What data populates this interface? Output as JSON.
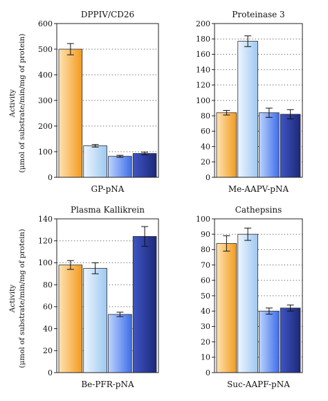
{
  "y_axis_label_line1": "Activity",
  "y_axis_label_line2": "(μmol of substrate/min/mg of protein)",
  "chart_data": [
    {
      "type": "bar",
      "title": "DPPIV/CD26",
      "xlabel": "GP-pNA",
      "ylabel": "Activity (μmol of substrate/min/mg of protein)",
      "ylim": [
        0,
        600
      ],
      "yticks": [
        0,
        100,
        200,
        300,
        400,
        500,
        600
      ],
      "grid": "horizontal dotted",
      "values": [
        500,
        123,
        82,
        93
      ],
      "errors": [
        22,
        5,
        4,
        5
      ]
    },
    {
      "type": "bar",
      "title": "Proteinase 3",
      "xlabel": "Me-AAPV-pNA",
      "ylim": [
        0,
        200
      ],
      "yticks": [
        0,
        20,
        40,
        60,
        80,
        100,
        120,
        140,
        160,
        180,
        200
      ],
      "grid": "horizontal dotted",
      "values": [
        84,
        177,
        84,
        82
      ],
      "errors": [
        3,
        7,
        6,
        6
      ]
    },
    {
      "type": "bar",
      "title": "Plasma Kallikrein",
      "xlabel": "Be-PFR-pNA",
      "ylabel": "Activity (μmol of substrate/min/mg of protein)",
      "ylim": [
        0,
        140
      ],
      "yticks": [
        0,
        20,
        40,
        60,
        80,
        100,
        120,
        140
      ],
      "grid": "horizontal dotted",
      "values": [
        98,
        95,
        53,
        124
      ],
      "errors": [
        4,
        5,
        2,
        9
      ]
    },
    {
      "type": "bar",
      "title": "Cathepsins",
      "xlabel": "Suc-AAPF-pNA",
      "ylim": [
        0,
        100
      ],
      "yticks": [
        0,
        10,
        20,
        30,
        40,
        50,
        60,
        70,
        80,
        90,
        100
      ],
      "grid": "horizontal dotted",
      "values": [
        84,
        90,
        40,
        42
      ],
      "errors": [
        5,
        4,
        2,
        2
      ]
    }
  ],
  "bar_gradients": [
    {
      "light": "#fde3b4",
      "dark": "#f49a1c"
    },
    {
      "light": "#eef6ff",
      "dark": "#9dc8f0"
    },
    {
      "light": "#bcd4ff",
      "dark": "#3f6ee8"
    },
    {
      "light": "#3f55c4",
      "dark": "#1c2878"
    }
  ]
}
